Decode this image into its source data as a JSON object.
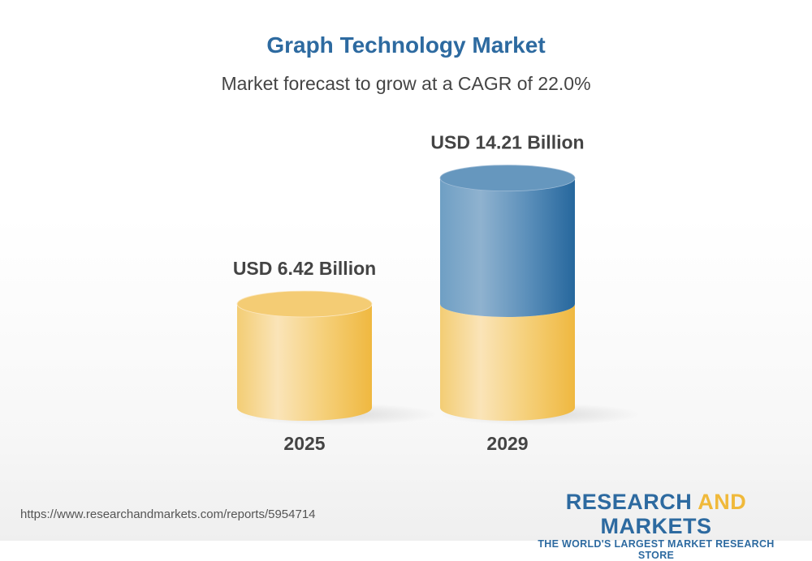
{
  "header": {
    "title": "Graph Technology Market",
    "subtitle": "Market forecast to grow at a CAGR of 22.0%"
  },
  "chart_data": {
    "type": "bar",
    "style": "3d-cylinder",
    "categories": [
      "2025",
      "2029"
    ],
    "values": [
      6.42,
      14.21
    ],
    "data_labels": [
      "USD 6.42 Billion",
      "USD 14.21 Billion"
    ],
    "unit": "USD Billion",
    "colors": {
      "base": "#f2c45a",
      "growth": "#2d6aa0"
    },
    "grid": false
  },
  "footer": {
    "url": "https://www.researchandmarkets.com/reports/5954714",
    "logo_part1": "RESEARCH ",
    "logo_part2": "AND",
    "logo_part3": " MARKETS",
    "logo_tagline": "THE WORLD'S LARGEST MARKET RESEARCH STORE"
  }
}
